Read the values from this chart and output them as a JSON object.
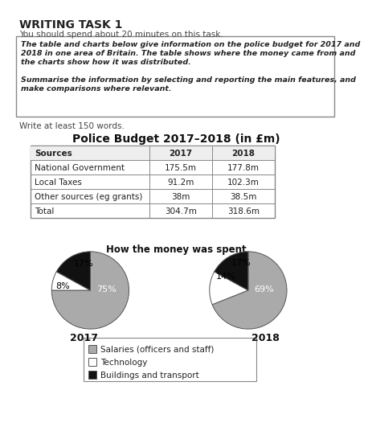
{
  "title_writing": "WRITING TASK 1",
  "subtitle": "You should spend about 20 minutes on this task.",
  "box_line1": "The table and charts below give information on the police budget for 2017 and",
  "box_line2": "2018 in one area of Britain. The table shows where the money came from and",
  "box_line3": "the charts show how it was distributed.",
  "box_line4": "Summarise the information by selecting and reporting the main features, and",
  "box_line5": "make comparisons where relevant.",
  "write_instruction": "Write at least 150 words.",
  "chart_main_title": "Police Budget 2017–2018 (in £m)",
  "table_headers": [
    "Sources",
    "2017",
    "2018"
  ],
  "table_rows": [
    [
      "National Government",
      "175.5m",
      "177.8m"
    ],
    [
      "Local Taxes",
      "91.2m",
      "102.3m"
    ],
    [
      "Other sources (eg grants)",
      "38m",
      "38.5m"
    ],
    [
      "Total",
      "304.7m",
      "318.6m"
    ]
  ],
  "pie_title": "How the money was spent",
  "pie_2017": [
    75,
    8,
    17
  ],
  "pie_2018": [
    69,
    14,
    17
  ],
  "pie_labels_2017": [
    "75%",
    "8%",
    "17%"
  ],
  "pie_labels_2018": [
    "69%",
    "14%",
    "17%"
  ],
  "pie_colors": [
    "#aaaaaa",
    "#ffffff",
    "#111111"
  ],
  "pie_year_labels": [
    "2017",
    "2018"
  ],
  "legend_labels": [
    "Salaries (officers and staff)",
    "Technology",
    "Buildings and transport"
  ],
  "legend_colors": [
    "#aaaaaa",
    "#ffffff",
    "#111111"
  ],
  "bg_color": "#ffffff"
}
